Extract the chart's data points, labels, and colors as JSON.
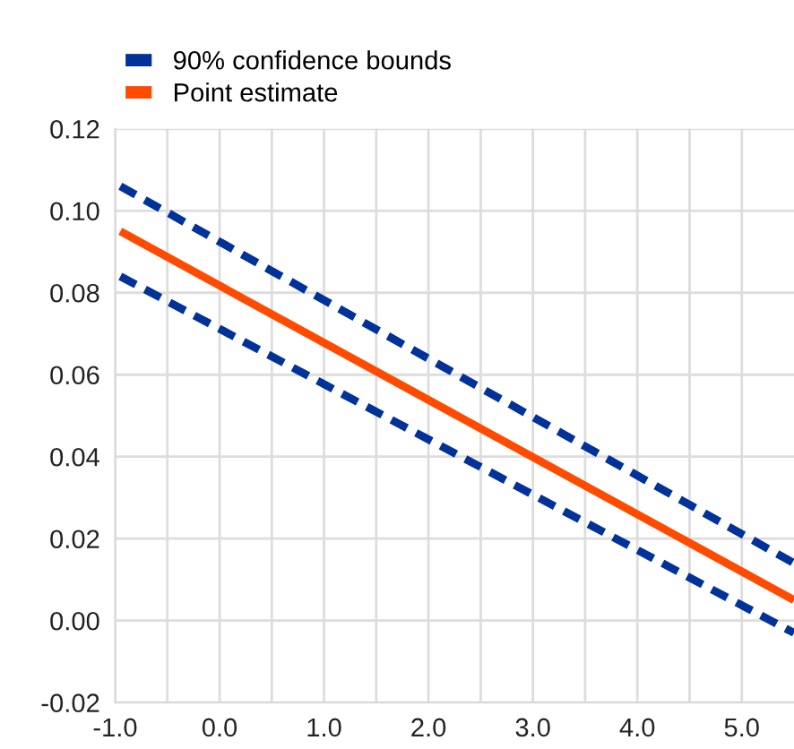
{
  "chart_data": {
    "type": "line",
    "x": [
      -0.95,
      5.5
    ],
    "series": [
      {
        "name": "90% confidence bounds",
        "color": "#003299",
        "values": [
          0.106,
          0.014
        ],
        "line_style": "dashed"
      },
      {
        "name": null,
        "color": "#003299",
        "values": [
          0.084,
          -0.003
        ],
        "line_style": "dashed"
      },
      {
        "name": "Point estimate",
        "color": "#ff4b00",
        "values": [
          0.095,
          0.005
        ],
        "line_style": "solid"
      }
    ],
    "xlim": [
      -1.0,
      5.5
    ],
    "xticks": [
      {
        "value": -1.0,
        "label": "-1.0"
      },
      {
        "value": -0.5,
        "label": null
      },
      {
        "value": 0.0,
        "label": "0.0"
      },
      {
        "value": 0.5,
        "label": null
      },
      {
        "value": 1.0,
        "label": "1.0"
      },
      {
        "value": 1.5,
        "label": null
      },
      {
        "value": 2.0,
        "label": "2.0"
      },
      {
        "value": 2.5,
        "label": null
      },
      {
        "value": 3.0,
        "label": "3.0"
      },
      {
        "value": 3.5,
        "label": null
      },
      {
        "value": 4.0,
        "label": "4.0"
      },
      {
        "value": 4.5,
        "label": null
      },
      {
        "value": 5.0,
        "label": "5.0"
      }
    ],
    "ylim": [
      -0.02,
      0.12
    ],
    "yticks": [
      {
        "value": -0.02,
        "label": "-0.02"
      },
      {
        "value": 0.0,
        "label": "0.00"
      },
      {
        "value": 0.02,
        "label": "0.02"
      },
      {
        "value": 0.04,
        "label": "0.04"
      },
      {
        "value": 0.06,
        "label": "0.06"
      },
      {
        "value": 0.08,
        "label": "0.08"
      },
      {
        "value": 0.1,
        "label": "0.10"
      },
      {
        "value": 0.12,
        "label": "0.12"
      }
    ],
    "grid": true,
    "legend": "top left",
    "marker": "none"
  }
}
